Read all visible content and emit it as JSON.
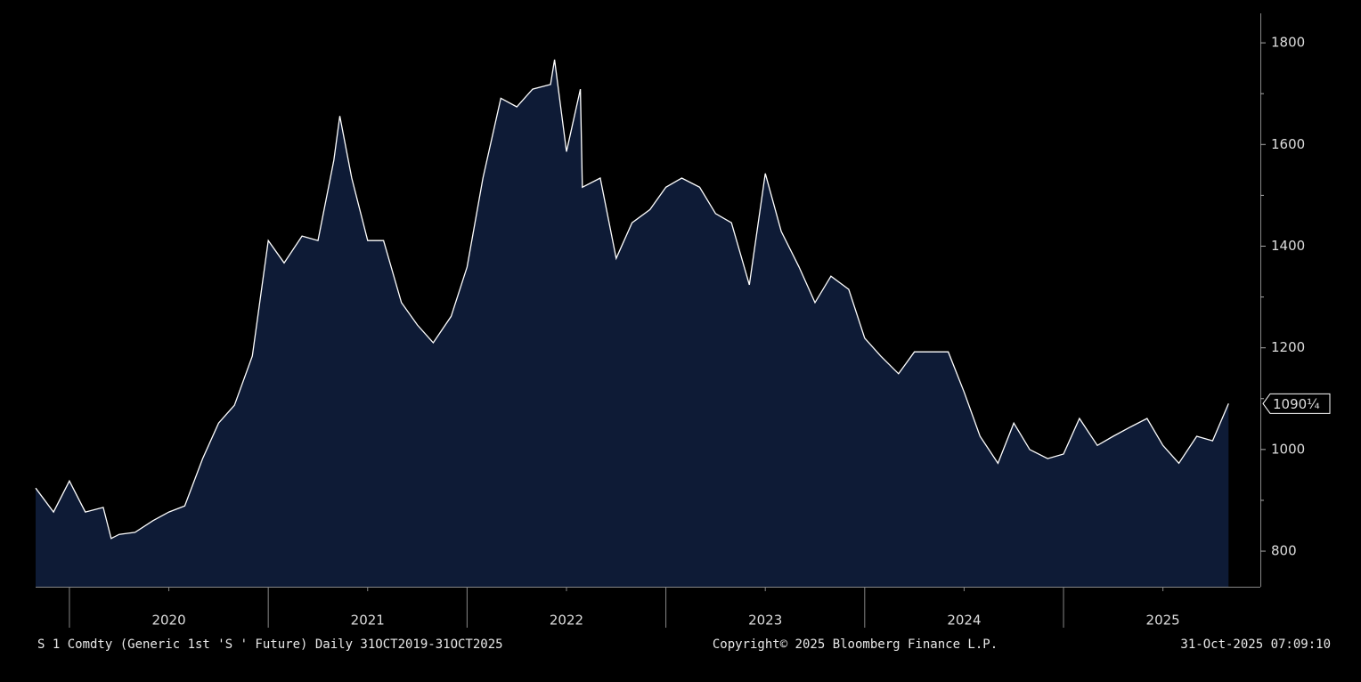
{
  "chart_data": {
    "type": "area",
    "title": "S 1 Comdty (Generic 1st 'S ' Future) Daily 31OCT2019-31OCT2025",
    "copyright": "Copyright© 2025 Bloomberg Finance L.P.",
    "timestamp": "31-Oct-2025 07:09:10",
    "x": [
      2019.83,
      2019.92,
      2020.0,
      2020.08,
      2020.17,
      2020.21,
      2020.25,
      2020.33,
      2020.42,
      2020.5,
      2020.58,
      2020.67,
      2020.75,
      2020.83,
      2020.92,
      2021.0,
      2021.08,
      2021.17,
      2021.25,
      2021.33,
      2021.36,
      2021.42,
      2021.5,
      2021.58,
      2021.67,
      2021.75,
      2021.83,
      2021.92,
      2022.0,
      2022.08,
      2022.17,
      2022.25,
      2022.33,
      2022.42,
      2022.44,
      2022.5,
      2022.57,
      2022.58,
      2022.67,
      2022.75,
      2022.83,
      2022.92,
      2023.0,
      2023.08,
      2023.17,
      2023.25,
      2023.33,
      2023.42,
      2023.5,
      2023.58,
      2023.67,
      2023.75,
      2023.83,
      2023.92,
      2024.0,
      2024.08,
      2024.17,
      2024.25,
      2024.33,
      2024.42,
      2024.5,
      2024.58,
      2024.67,
      2024.75,
      2024.83,
      2024.92,
      2025.0,
      2025.08,
      2025.17,
      2025.25,
      2025.33,
      2025.42,
      2025.5,
      2025.58,
      2025.67,
      2025.75,
      2025.83
    ],
    "values": [
      924,
      877,
      938,
      877,
      886,
      825,
      833,
      837,
      860,
      877,
      889,
      982,
      1052,
      1087,
      1184,
      1411,
      1367,
      1420,
      1411,
      1569,
      1656,
      1534,
      1411,
      1411,
      1289,
      1245,
      1210,
      1262,
      1359,
      1534,
      1691,
      1674,
      1709,
      1718,
      1767,
      1586,
      1709,
      1516,
      1534,
      1376,
      1446,
      1472,
      1516,
      1534,
      1516,
      1464,
      1446,
      1324,
      1543,
      1429,
      1359,
      1289,
      1341,
      1315,
      1219,
      1184,
      1149,
      1192,
      1192,
      1192,
      1113,
      1026,
      973,
      1052,
      1000,
      982,
      991,
      1061,
      1008,
      1026,
      1043,
      1061,
      1008,
      973,
      1026,
      1017,
      1090.25
    ],
    "last_value_label": "1090¼",
    "fill_color": "#0e1b36",
    "line_color": "#ffffff",
    "xlim": [
      2019.83,
      2025.99
    ],
    "xticks": [
      {
        "value": 2020.5,
        "label": "2020"
      },
      {
        "value": 2021.5,
        "label": "2021"
      },
      {
        "value": 2022.5,
        "label": "2022"
      },
      {
        "value": 2023.5,
        "label": "2023"
      },
      {
        "value": 2024.5,
        "label": "2024"
      },
      {
        "value": 2025.5,
        "label": "2025"
      }
    ],
    "x_boundaries": [
      2020,
      2021,
      2022,
      2023,
      2024,
      2025
    ],
    "ylim": [
      730,
      1858
    ],
    "yticks": [
      800,
      1000,
      1200,
      1400,
      1600,
      1800
    ],
    "y_minor_ticks": [
      900,
      1100,
      1300,
      1500,
      1700
    ]
  }
}
